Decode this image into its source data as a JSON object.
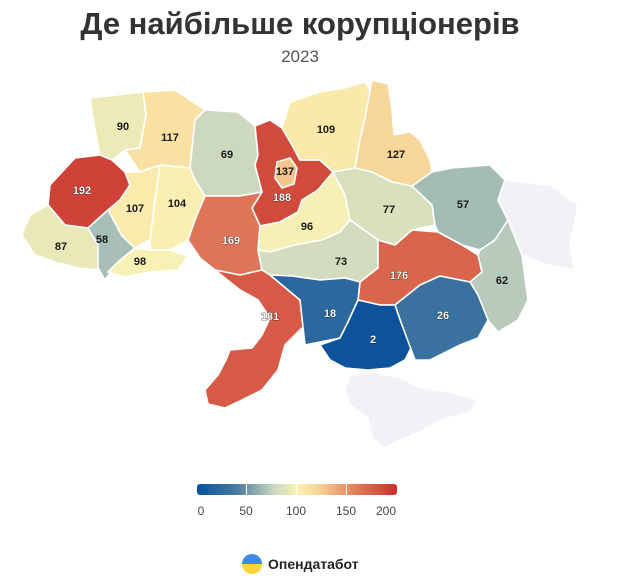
{
  "title": "Де найбільше корупціонерів",
  "subtitle": "2023",
  "legend": {
    "min": 0,
    "max": 200,
    "labels": [
      "0",
      "50",
      "100",
      "150",
      "200"
    ],
    "colors": [
      "#08519c",
      "#4a7a9e",
      "#c9d7c0",
      "#fbf3b4",
      "#f5cf93",
      "#e07a5a",
      "#c9302c"
    ]
  },
  "regions": [
    {
      "id": "volyn",
      "value": 90
    },
    {
      "id": "rivne",
      "value": 117
    },
    {
      "id": "zhytomyr",
      "value": 69
    },
    {
      "id": "kyiv-oblast",
      "value": 188
    },
    {
      "id": "kyiv-city",
      "value": 137
    },
    {
      "id": "chernihiv",
      "value": 109
    },
    {
      "id": "sumy",
      "value": 127
    },
    {
      "id": "lviv",
      "value": 192
    },
    {
      "id": "ternopil",
      "value": 107
    },
    {
      "id": "khmelnytskyi",
      "value": 104
    },
    {
      "id": "vinnytsia",
      "value": 169
    },
    {
      "id": "cherkasy",
      "value": 96
    },
    {
      "id": "poltava",
      "value": 77
    },
    {
      "id": "kharkiv",
      "value": 57
    },
    {
      "id": "luhansk",
      "value": null
    },
    {
      "id": "zakarpattia",
      "value": 87
    },
    {
      "id": "ivano-frankivsk",
      "value": 58
    },
    {
      "id": "chernivtsi",
      "value": 98
    },
    {
      "id": "kirovohrad",
      "value": 73
    },
    {
      "id": "dnipropetrovsk",
      "value": 176
    },
    {
      "id": "donetsk",
      "value": 62
    },
    {
      "id": "odesa",
      "value": 181
    },
    {
      "id": "mykolaiv",
      "value": 18
    },
    {
      "id": "kherson",
      "value": 2
    },
    {
      "id": "zaporizhzhia",
      "value": 26
    },
    {
      "id": "crimea",
      "value": null
    }
  ],
  "brand": {
    "name": "Опендатабот"
  }
}
